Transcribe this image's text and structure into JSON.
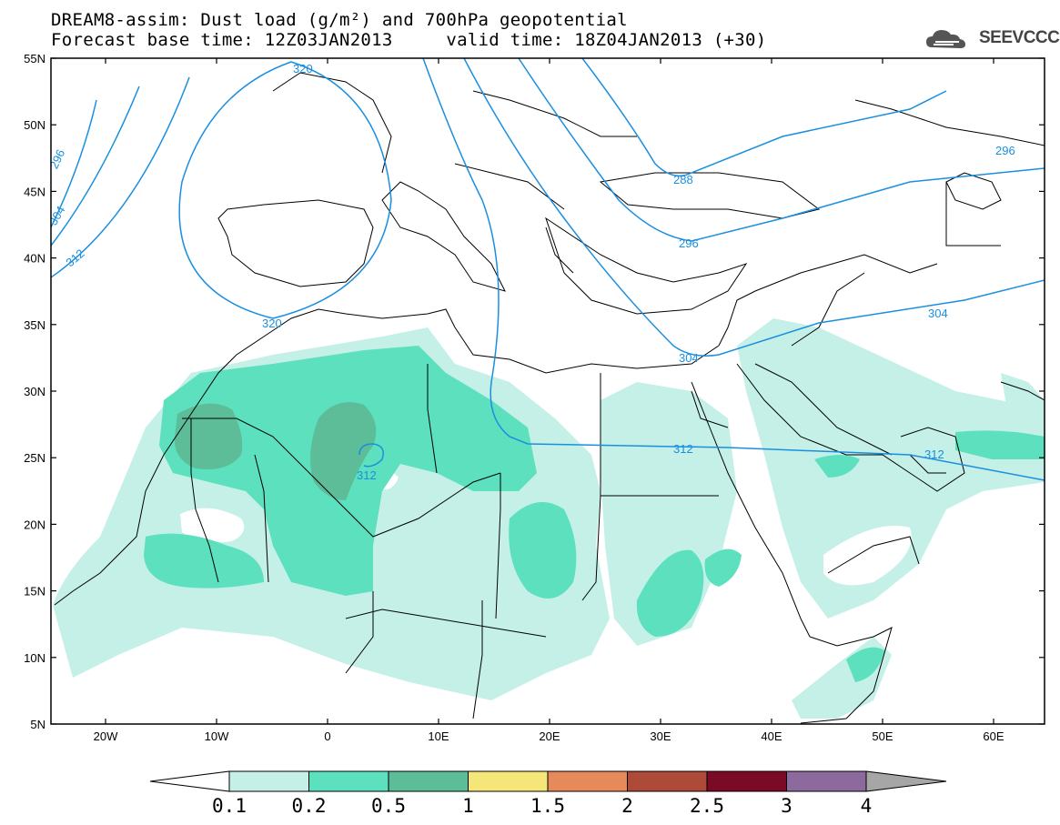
{
  "header": {
    "title_line1": "DREAM8-assim: Dust load (g/m²) and 700hPa geopotential",
    "title_line2": "Forecast base time: 12Z03JAN2013     valid time: 18Z04JAN2013 (+30)"
  },
  "logo": {
    "text": "SEEVCCC",
    "icon": "cloud-icon",
    "color": "#555555"
  },
  "map": {
    "lat_labels": [
      "55N",
      "50N",
      "45N",
      "40N",
      "35N",
      "30N",
      "25N",
      "20N",
      "15N",
      "10N",
      "5N"
    ],
    "lon_labels": [
      "20W",
      "10W",
      "0",
      "10E",
      "20E",
      "30E",
      "40E",
      "50E",
      "60E"
    ],
    "contour_color": "#1a8fe0",
    "contour_labels": [
      "320",
      "296",
      "304",
      "312",
      "320",
      "288",
      "296",
      "296",
      "304",
      "304",
      "312",
      "312",
      "312"
    ]
  },
  "colorbar": {
    "labels": [
      "0.1",
      "0.2",
      "0.5",
      "1",
      "1.5",
      "2",
      "2.5",
      "3",
      "4"
    ],
    "colors": [
      "#c4f0e8",
      "#5ce0be",
      "#5cbd98",
      "#f5e67a",
      "#e68a5c",
      "#ad4a38",
      "#7a0a26",
      "#8c6a9e",
      "#a6a6a6"
    ]
  }
}
